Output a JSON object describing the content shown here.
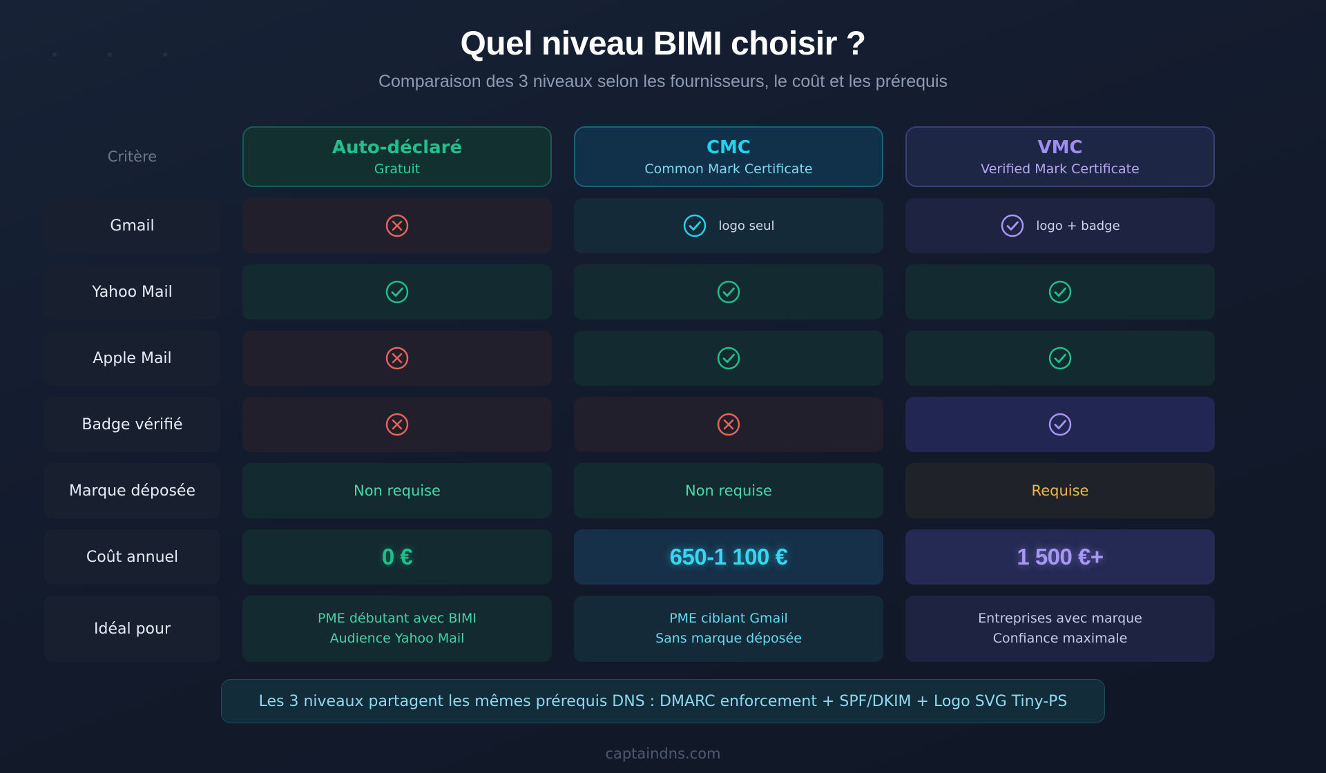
{
  "title": "Quel niveau BIMI choisir ?",
  "subtitle": "Comparaison des 3 niveaux selon les fournisseurs, le coût et les prérequis",
  "criteria_header": "Critère",
  "columns": [
    {
      "name": "Auto-déclaré",
      "sub": "Gratuit",
      "color": "#22c08e"
    },
    {
      "name": "CMC",
      "sub": "Common Mark Certificate",
      "color": "#22d3ee"
    },
    {
      "name": "VMC",
      "sub": "Verified Mark Certificate",
      "color": "#a08df0"
    }
  ],
  "rows": {
    "gmail": {
      "label": "Gmail",
      "auto": "x-icon",
      "cmc": "check-icon",
      "cmc_note": "logo seul",
      "vmc": "check-icon",
      "vmc_note": "logo + badge"
    },
    "yahoo": {
      "label": "Yahoo Mail",
      "auto": "check-icon",
      "cmc": "check-icon",
      "vmc": "check-icon"
    },
    "apple": {
      "label": "Apple Mail",
      "auto": "x-icon",
      "cmc": "check-icon",
      "vmc": "check-icon"
    },
    "badge": {
      "label": "Badge vérifié",
      "auto": "x-icon",
      "cmc": "x-icon",
      "vmc": "check-icon"
    },
    "trademark": {
      "label": "Marque déposée",
      "auto": "Non requise",
      "cmc": "Non requise",
      "vmc": "Requise"
    },
    "cost": {
      "label": "Coût annuel",
      "auto": "0 €",
      "cmc": "650-1 100 €",
      "vmc": "1 500 €+"
    },
    "ideal": {
      "label": "Idéal pour",
      "auto": [
        "PME débutant avec BIMI",
        "Audience Yahoo Mail"
      ],
      "cmc": [
        "PME ciblant Gmail",
        "Sans marque déposée"
      ],
      "vmc": [
        "Entreprises avec marque",
        "Confiance maximale"
      ]
    }
  },
  "footer_note": "Les 3 niveaux partagent les mêmes prérequis DNS : DMARC enforcement + SPF/DKIM + Logo SVG Tiny-PS",
  "site": "captaindns.com",
  "colors": {
    "cross": "#e5645a",
    "check_green": "#1fbf8a",
    "check_cyan": "#22d3ee",
    "check_purple": "#a797f5",
    "required": "#f2b84d"
  }
}
